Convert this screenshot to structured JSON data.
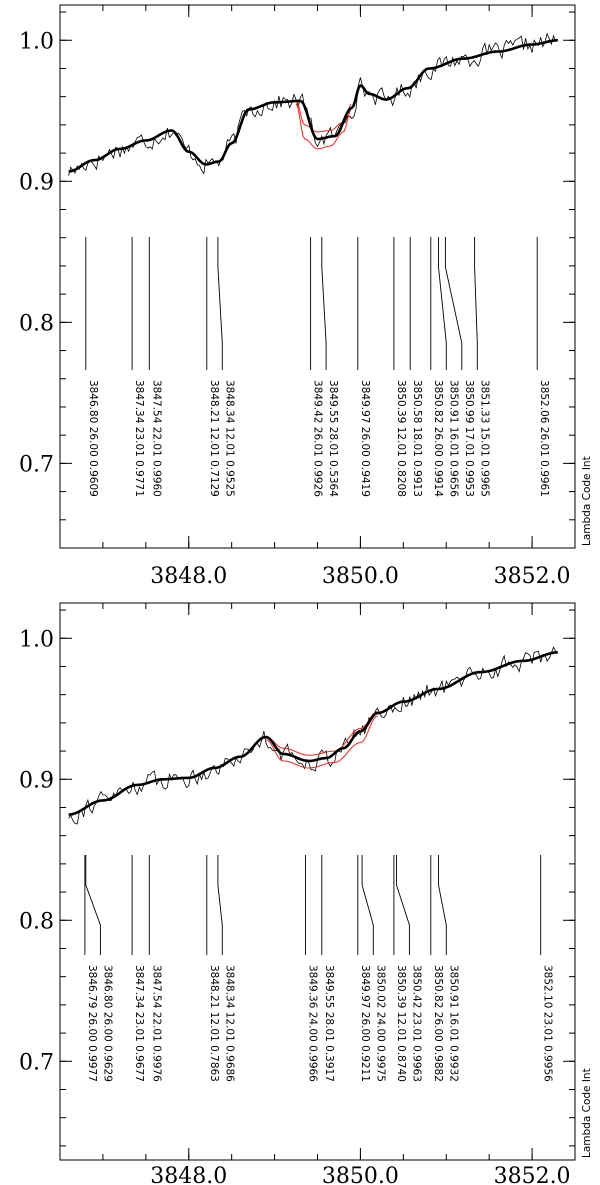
{
  "chart_data": [
    {
      "type": "line",
      "xlim": [
        3846.5,
        3852.5
      ],
      "ylim": [
        0.64,
        1.025
      ],
      "x_ticks": [
        3848.0,
        3850.0,
        3852.0
      ],
      "x_tick_labels": [
        "3848.0",
        "3850.0",
        "3852.0"
      ],
      "y_ticks": [
        0.7,
        0.8,
        0.9,
        1.0
      ],
      "y_tick_labels": [
        "0.7",
        "0.8",
        "0.9",
        "1.0"
      ],
      "corner_label": "Lambda Code Int",
      "colors": {
        "observed": "#000000",
        "fit": "#000000",
        "alternate_fits": "#e8281e"
      },
      "fit": {
        "x": [
          3846.6,
          3846.9,
          3847.2,
          3847.5,
          3847.8,
          3848.0,
          3848.2,
          3848.35,
          3848.5,
          3848.7,
          3849.0,
          3849.3,
          3849.5,
          3849.7,
          3849.9,
          3850.0,
          3850.1,
          3850.3,
          3850.55,
          3850.8,
          3851.2,
          3851.6,
          3852.0,
          3852.3
        ],
        "y": [
          0.907,
          0.915,
          0.923,
          0.929,
          0.936,
          0.921,
          0.912,
          0.914,
          0.927,
          0.951,
          0.956,
          0.957,
          0.93,
          0.932,
          0.952,
          0.968,
          0.962,
          0.958,
          0.966,
          0.98,
          0.987,
          0.992,
          0.997,
          1.0
        ]
      },
      "alternates": [
        {
          "x": [
            3849.25,
            3849.35,
            3849.5,
            3849.65,
            3849.8,
            3849.9
          ],
          "y": [
            0.957,
            0.94,
            0.935,
            0.936,
            0.942,
            0.955
          ]
        },
        {
          "x": [
            3849.25,
            3849.35,
            3849.5,
            3849.65,
            3849.8,
            3849.9
          ],
          "y": [
            0.955,
            0.93,
            0.923,
            0.925,
            0.935,
            0.952
          ]
        }
      ],
      "line_labels": [
        {
          "x": 3846.8,
          "text": "3846.80 26.00 0.9609"
        },
        {
          "x": 3847.34,
          "text": "3847.34 23.01 0.9771"
        },
        {
          "x": 3847.54,
          "text": "3847.54 22.01 0.9960"
        },
        {
          "x": 3848.21,
          "text": "3848.21 12.01 0.7129"
        },
        {
          "x": 3848.34,
          "text": "3848.34 12.01 0.9525"
        },
        {
          "x": 3849.42,
          "text": "3849.42 26.01 0.9926"
        },
        {
          "x": 3849.55,
          "text": "3849.55 28.01 0.5364"
        },
        {
          "x": 3849.97,
          "text": "3849.97 26.00 0.9419"
        },
        {
          "x": 3850.39,
          "text": "3850.39 12.01 0.8208"
        },
        {
          "x": 3850.58,
          "text": "3850.58 18.01 0.9913"
        },
        {
          "x": 3850.82,
          "text": "3850.82 26.00 0.9914"
        },
        {
          "x": 3850.91,
          "text": "3850.91 16.01 0.9656"
        },
        {
          "x": 3850.99,
          "text": "3850.99 17.01 0.9953"
        },
        {
          "x": 3851.33,
          "text": "3851.33 15.01 0.9965"
        },
        {
          "x": 3852.06,
          "text": "3852.06 26.01 0.9961"
        }
      ]
    },
    {
      "type": "line",
      "xlim": [
        3846.5,
        3852.5
      ],
      "ylim": [
        0.63,
        1.025
      ],
      "x_ticks": [
        3848.0,
        3850.0,
        3852.0
      ],
      "x_tick_labels": [
        "3848.0",
        "3850.0",
        "3852.0"
      ],
      "y_ticks": [
        0.7,
        0.8,
        0.9,
        1.0
      ],
      "y_tick_labels": [
        "0.7",
        "0.8",
        "0.9",
        "1.0"
      ],
      "corner_label": "Lambda Code Int",
      "colors": {
        "observed": "#000000",
        "fit": "#000000",
        "alternate_fits": "#e8281e"
      },
      "fit": {
        "x": [
          3846.6,
          3847.0,
          3847.4,
          3847.7,
          3848.0,
          3848.3,
          3848.6,
          3848.9,
          3849.1,
          3849.4,
          3849.6,
          3849.8,
          3850.0,
          3850.2,
          3850.5,
          3850.9,
          3851.4,
          3851.9,
          3852.3
        ],
        "y": [
          0.875,
          0.885,
          0.896,
          0.9,
          0.901,
          0.908,
          0.916,
          0.93,
          0.918,
          0.913,
          0.915,
          0.922,
          0.934,
          0.947,
          0.955,
          0.964,
          0.976,
          0.984,
          0.99
        ]
      },
      "alternates": [
        {
          "x": [
            3848.9,
            3849.1,
            3849.4,
            3849.7,
            3850.0,
            3850.2
          ],
          "y": [
            0.93,
            0.922,
            0.917,
            0.92,
            0.936,
            0.948
          ]
        },
        {
          "x": [
            3848.9,
            3849.1,
            3849.4,
            3849.7,
            3850.0,
            3850.2
          ],
          "y": [
            0.928,
            0.913,
            0.908,
            0.912,
            0.926,
            0.945
          ]
        }
      ],
      "line_labels": [
        {
          "x": 3846.79,
          "text": "3846.79 26.00 0.9977"
        },
        {
          "x": 3846.8,
          "text": "3846.80 26.00 0.9629"
        },
        {
          "x": 3847.34,
          "text": "3847.34 23.01 0.9677"
        },
        {
          "x": 3847.54,
          "text": "3847.54 22.01 0.9976"
        },
        {
          "x": 3848.21,
          "text": "3848.21 12.01 0.7863"
        },
        {
          "x": 3848.34,
          "text": "3848.34 12.01 0.9686"
        },
        {
          "x": 3849.36,
          "text": "3849.36 24.00 0.9966"
        },
        {
          "x": 3849.55,
          "text": "3849.55 28.01 0.3917"
        },
        {
          "x": 3849.97,
          "text": "3849.97 26.00 0.9211"
        },
        {
          "x": 3850.02,
          "text": "3850.02 24.00 0.9975"
        },
        {
          "x": 3850.39,
          "text": "3850.39 12.01 0.8740"
        },
        {
          "x": 3850.42,
          "text": "3850.42 23.01 0.9963"
        },
        {
          "x": 3850.82,
          "text": "3850.82 26.00 0.9882"
        },
        {
          "x": 3850.91,
          "text": "3850.91 16.01 0.9932"
        },
        {
          "x": 3852.1,
          "text": "3852.10 23.01 0.9956"
        }
      ]
    }
  ]
}
